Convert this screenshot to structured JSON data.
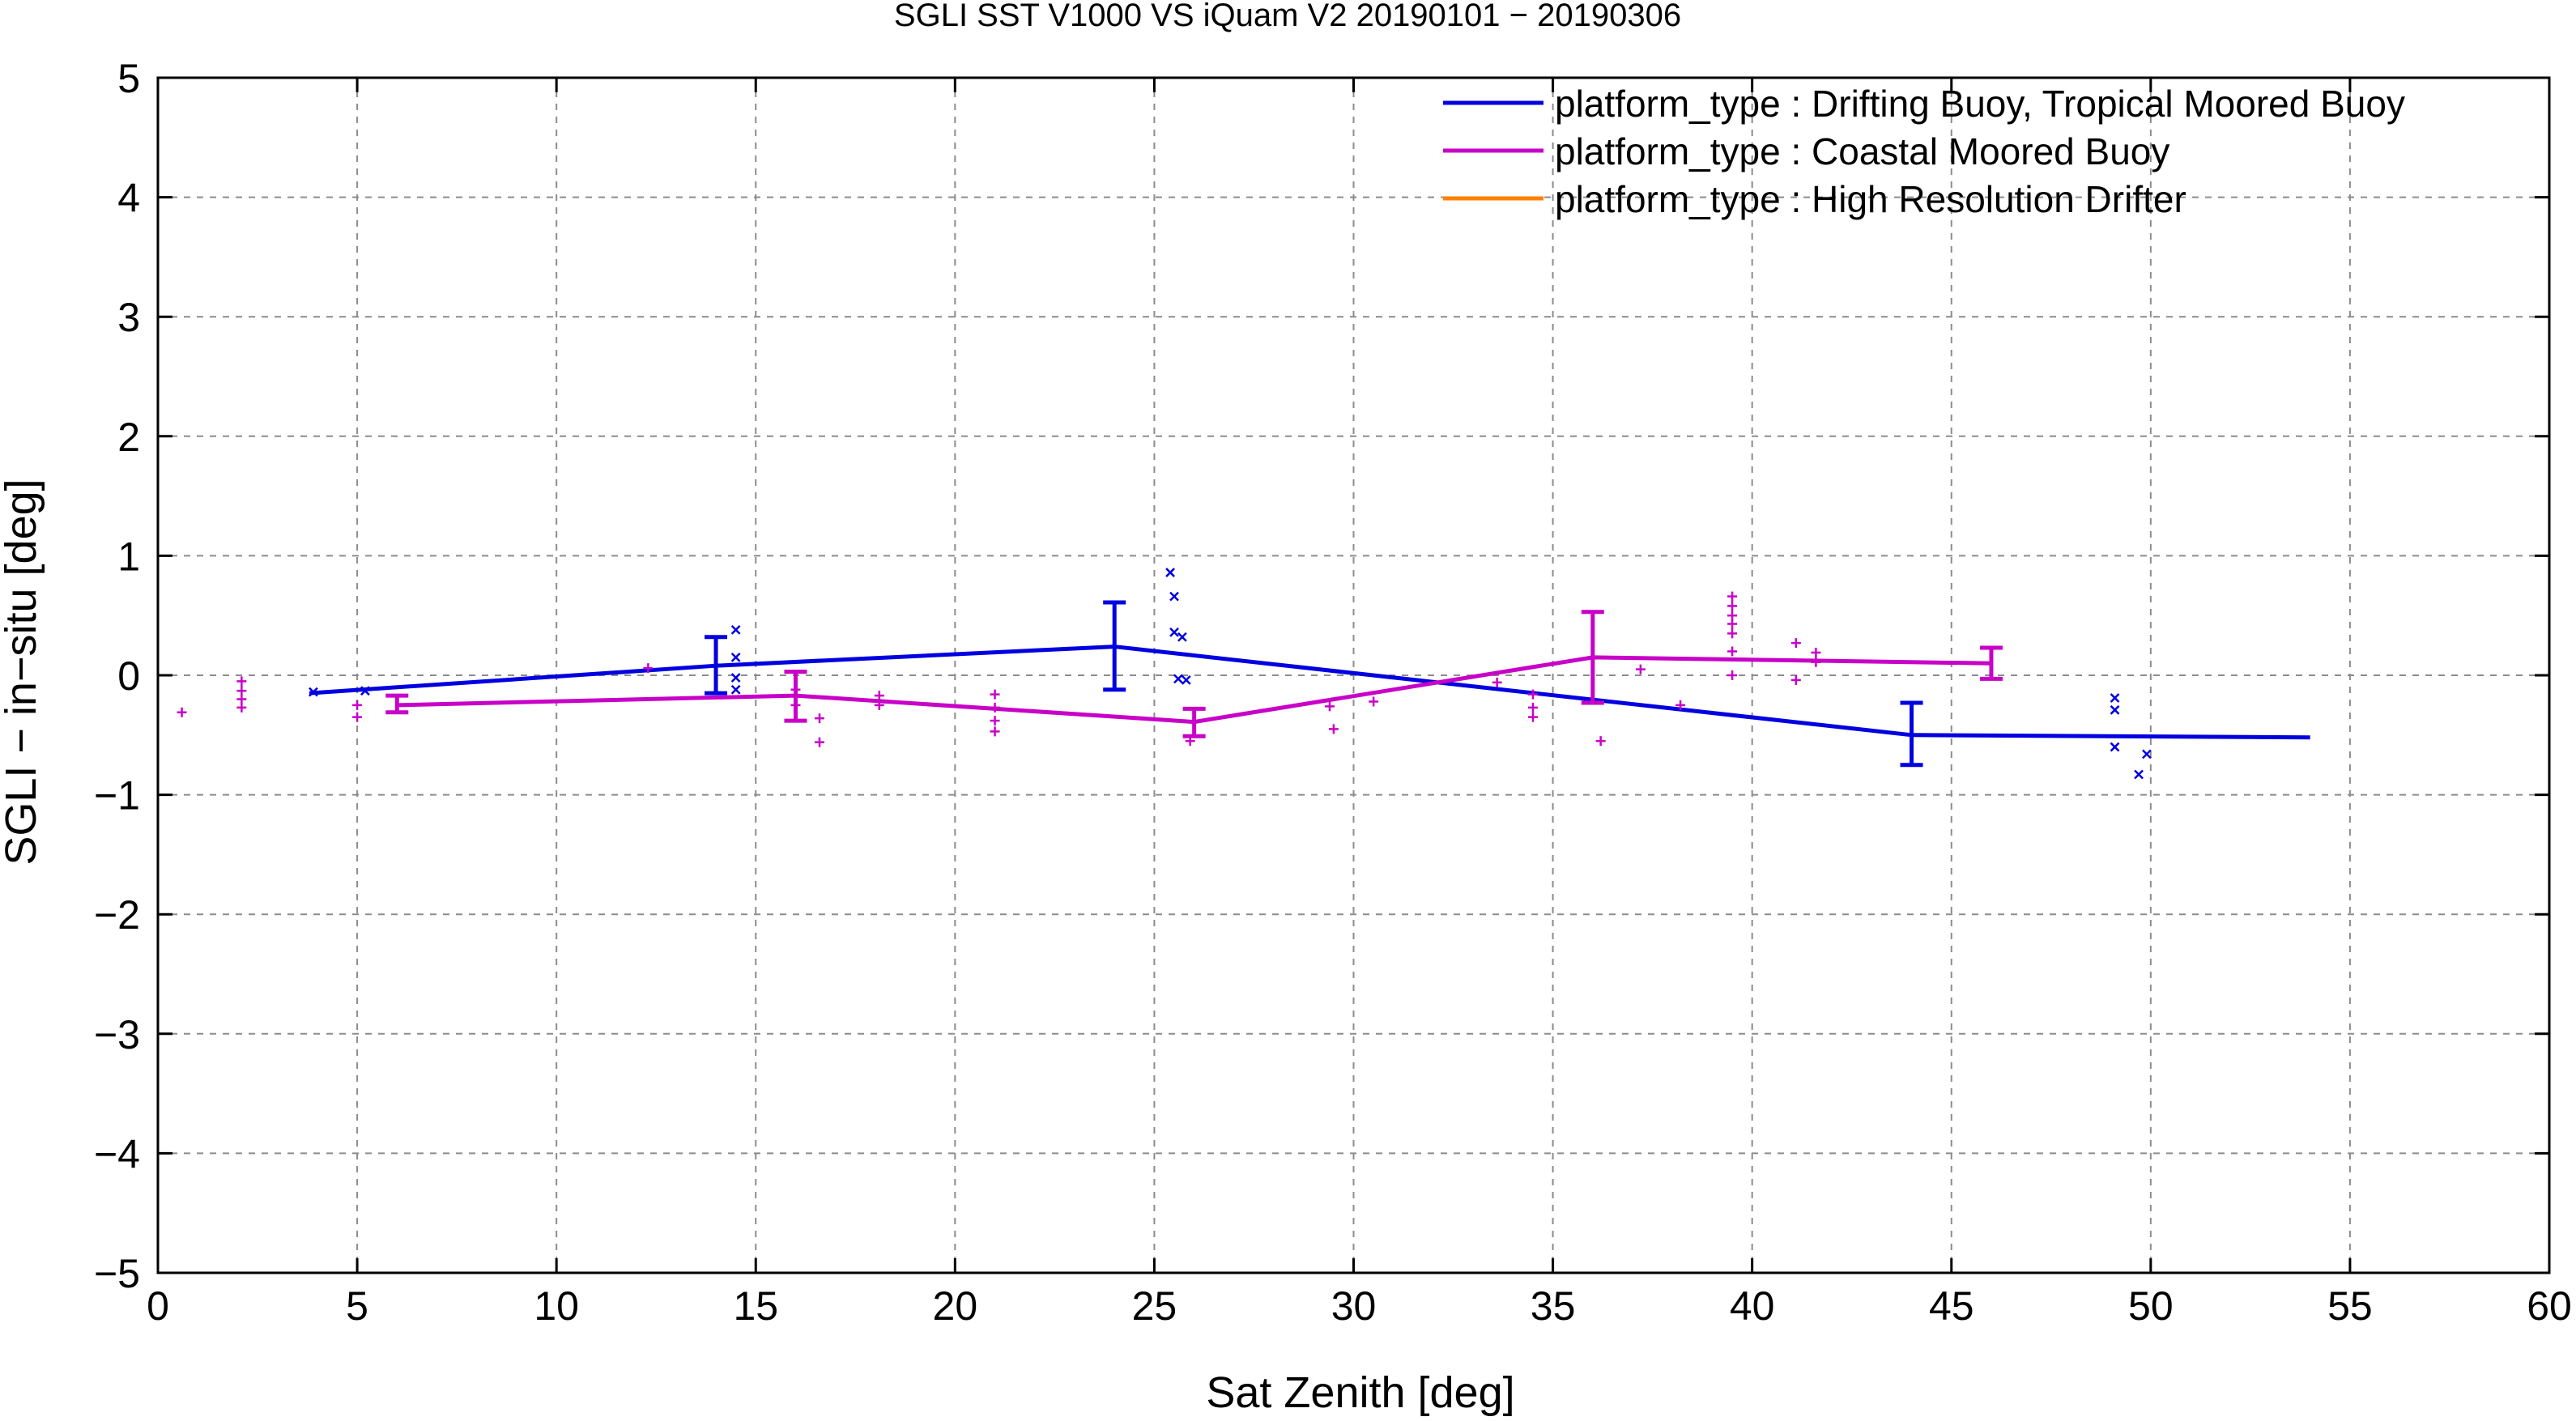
{
  "chart_data": {
    "type": "line",
    "title": "SGLI SST V1000 VS iQuam V2 20190101 − 20190306",
    "xlabel": "Sat Zenith [deg]",
    "ylabel": "SGLI − in−situ [deg]",
    "xlim": [
      0,
      60
    ],
    "ylim": [
      -5,
      5
    ],
    "xticks": [
      0,
      5,
      10,
      15,
      20,
      25,
      30,
      35,
      40,
      45,
      50,
      55,
      60
    ],
    "yticks": [
      -5,
      -4,
      -3,
      -2,
      -1,
      0,
      1,
      2,
      3,
      4,
      5
    ],
    "xtick_labels": [
      "0",
      "5",
      "10",
      "15",
      "20",
      "25",
      "30",
      "35",
      "40",
      "45",
      "50",
      "55",
      "60"
    ],
    "ytick_labels": [
      "−5",
      "−4",
      "−3",
      "−2",
      "−1",
      "0",
      "1",
      "2",
      "3",
      "4",
      "5"
    ],
    "grid": true,
    "legend_position": "top-right",
    "series": [
      {
        "name": "platform_type : Drifting Buoy, Tropical Moored Buoy",
        "color": "#0000e0",
        "marker": "x",
        "line": [
          [
            3.8,
            -0.15
          ],
          [
            14,
            0.08
          ],
          [
            24,
            0.24
          ],
          [
            44,
            -0.5
          ],
          [
            54,
            -0.52
          ]
        ],
        "errorbars": [
          {
            "x": 14,
            "low": -0.15,
            "high": 0.32
          },
          {
            "x": 24,
            "low": -0.12,
            "high": 0.61
          },
          {
            "x": 44,
            "low": -0.75,
            "high": -0.23
          }
        ],
        "points": [
          [
            3.9,
            -0.14
          ],
          [
            5.2,
            -0.13
          ],
          [
            14.5,
            0.38
          ],
          [
            14.5,
            0.15
          ],
          [
            14.5,
            -0.02
          ],
          [
            14.5,
            -0.12
          ],
          [
            25.4,
            0.86
          ],
          [
            25.5,
            0.66
          ],
          [
            25.5,
            0.36
          ],
          [
            25.7,
            0.32
          ],
          [
            25.6,
            -0.03
          ],
          [
            25.8,
            -0.04
          ],
          [
            49.1,
            -0.19
          ],
          [
            49.1,
            -0.29
          ],
          [
            49.1,
            -0.6
          ],
          [
            49.7,
            -0.83
          ],
          [
            49.9,
            -0.66
          ]
        ]
      },
      {
        "name": "platform_type : Coastal Moored Buoy",
        "color": "#c800c8",
        "marker": "+",
        "line": [
          [
            6,
            -0.25
          ],
          [
            16,
            -0.17
          ],
          [
            26,
            -0.39
          ],
          [
            36,
            0.15
          ],
          [
            46,
            0.1
          ]
        ],
        "errorbars": [
          {
            "x": 6,
            "low": -0.31,
            "high": -0.17
          },
          {
            "x": 16,
            "low": -0.38,
            "high": 0.03
          },
          {
            "x": 26,
            "low": -0.51,
            "high": -0.28
          },
          {
            "x": 36,
            "low": -0.23,
            "high": 0.53
          },
          {
            "x": 46,
            "low": -0.03,
            "high": 0.23
          }
        ],
        "points": [
          [
            0.6,
            -0.31
          ],
          [
            2.1,
            -0.05
          ],
          [
            2.1,
            -0.13
          ],
          [
            2.1,
            -0.2
          ],
          [
            2.1,
            -0.27
          ],
          [
            5.0,
            -0.25
          ],
          [
            5.0,
            -0.35
          ],
          [
            12.3,
            0.06
          ],
          [
            16.0,
            -0.12
          ],
          [
            16.0,
            -0.25
          ],
          [
            16.6,
            -0.36
          ],
          [
            16.6,
            -0.56
          ],
          [
            18.1,
            -0.17
          ],
          [
            18.1,
            -0.25
          ],
          [
            21.0,
            -0.16
          ],
          [
            21.0,
            -0.27
          ],
          [
            21.0,
            -0.38
          ],
          [
            21.0,
            -0.47
          ],
          [
            25.9,
            -0.55
          ],
          [
            29.4,
            -0.26
          ],
          [
            29.5,
            -0.45
          ],
          [
            30.5,
            -0.22
          ],
          [
            33.6,
            -0.06
          ],
          [
            34.5,
            -0.16
          ],
          [
            34.5,
            -0.27
          ],
          [
            34.5,
            -0.35
          ],
          [
            36.2,
            -0.55
          ],
          [
            37.2,
            0.05
          ],
          [
            38.2,
            -0.25
          ],
          [
            39.5,
            0.66
          ],
          [
            39.5,
            0.58
          ],
          [
            39.5,
            0.5
          ],
          [
            39.5,
            0.43
          ],
          [
            39.5,
            0.35
          ],
          [
            39.5,
            0.2
          ],
          [
            39.5,
            0.0
          ],
          [
            41.1,
            0.27
          ],
          [
            41.1,
            -0.04
          ],
          [
            41.6,
            0.19
          ],
          [
            41.6,
            0.11
          ]
        ]
      },
      {
        "name": "platform_type : High Resolution Drifter",
        "color": "#ff8000",
        "marker": "+",
        "line": [],
        "errorbars": [],
        "points": []
      }
    ]
  }
}
